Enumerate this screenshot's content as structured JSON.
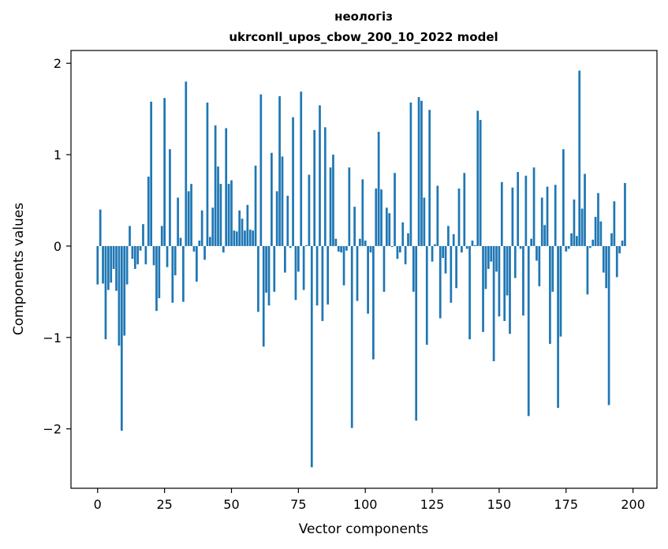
{
  "chart_data": {
    "type": "bar",
    "title": "неологіз",
    "subtitle": "ukrconll_upos_cbow_200_10_2022 model",
    "xlabel": "Vector components",
    "ylabel": "Components values",
    "xlim": [
      -9.95,
      208.95
    ],
    "ylim": [
      -2.65,
      2.14
    ],
    "x_ticks": [
      0,
      25,
      50,
      75,
      100,
      125,
      150,
      175,
      200
    ],
    "x_tick_labels": [
      "0",
      "25",
      "50",
      "75",
      "100",
      "125",
      "150",
      "175",
      "200"
    ],
    "y_ticks": [
      -2,
      -1,
      0,
      1,
      2
    ],
    "y_tick_labels": [
      "−2",
      "−1",
      "0",
      "1",
      "2"
    ],
    "bar_color": "#1f77b4",
    "grid": false,
    "legend": "none",
    "values": [
      -0.42,
      0.4,
      -0.41,
      -1.02,
      -0.48,
      -0.4,
      -0.25,
      -0.49,
      -1.09,
      -2.02,
      -0.98,
      -0.42,
      0.22,
      -0.14,
      -0.25,
      -0.2,
      -0.05,
      0.24,
      -0.2,
      0.76,
      1.58,
      -0.21,
      -0.71,
      -0.57,
      0.22,
      1.62,
      -0.23,
      1.06,
      -0.62,
      -0.32,
      0.53,
      0.09,
      -0.61,
      1.8,
      0.6,
      0.68,
      -0.06,
      -0.39,
      0.06,
      0.39,
      -0.15,
      1.57,
      0.1,
      0.42,
      1.32,
      0.87,
      0.68,
      -0.07,
      1.29,
      0.68,
      0.72,
      0.17,
      0.16,
      0.39,
      0.3,
      0.17,
      0.45,
      0.18,
      0.17,
      0.88,
      -0.72,
      1.66,
      -1.1,
      -0.51,
      -0.65,
      1.02,
      -0.5,
      0.6,
      1.64,
      0.98,
      -0.29,
      0.55,
      -0.02,
      1.41,
      -0.59,
      -0.28,
      1.69,
      -0.48,
      0.01,
      0.78,
      -2.42,
      1.27,
      -0.65,
      1.54,
      -0.82,
      1.3,
      -0.64,
      0.86,
      1.0,
      0.08,
      -0.06,
      -0.07,
      -0.43,
      -0.05,
      0.86,
      -1.99,
      0.43,
      -0.6,
      0.08,
      0.73,
      0.06,
      -0.74,
      -0.07,
      -1.24,
      0.63,
      1.25,
      0.62,
      -0.5,
      0.42,
      0.36,
      -0.01,
      0.8,
      -0.14,
      -0.07,
      0.26,
      -0.2,
      0.14,
      1.57,
      -0.5,
      -1.91,
      1.63,
      1.59,
      0.53,
      -1.08,
      1.49,
      -0.17,
      0.02,
      0.66,
      -0.79,
      -0.13,
      -0.3,
      0.22,
      -0.62,
      0.13,
      -0.46,
      0.63,
      -0.07,
      0.8,
      -0.03,
      -1.02,
      0.06,
      0.01,
      1.48,
      1.38,
      -0.94,
      -0.47,
      -0.25,
      -0.17,
      -1.26,
      -0.28,
      -0.77,
      0.7,
      -0.82,
      -0.54,
      -0.96,
      0.64,
      -0.35,
      0.81,
      -0.03,
      -0.76,
      0.77,
      -1.86,
      0.08,
      0.86,
      -0.16,
      -0.44,
      0.53,
      0.23,
      0.65,
      -1.07,
      -0.5,
      0.67,
      -1.77,
      -0.99,
      1.06,
      -0.06,
      -0.03,
      0.14,
      0.51,
      0.11,
      1.92,
      0.41,
      0.79,
      -0.53,
      -0.02,
      0.07,
      0.32,
      0.58,
      0.27,
      -0.29,
      -0.46,
      -1.74,
      0.14,
      0.49,
      -0.34,
      -0.08,
      0.06,
      0.69
    ]
  }
}
